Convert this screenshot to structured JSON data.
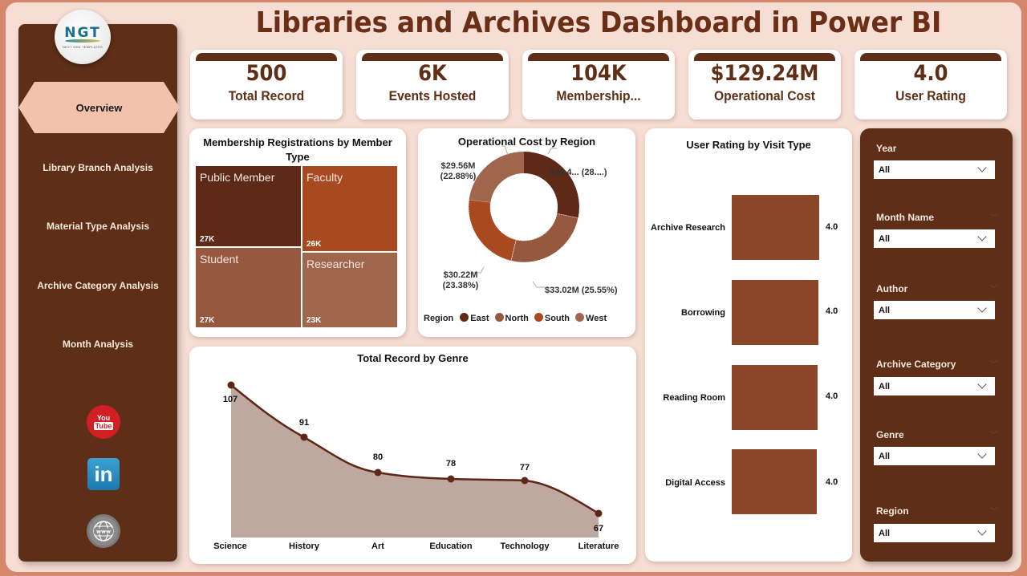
{
  "header": {
    "title": "Libraries and Archives Dashboard in Power BI"
  },
  "logo": {
    "text": "NGT",
    "subtitle": "NEXT GEN TEMPLATES"
  },
  "sidebar": {
    "items": [
      {
        "label": "Overview",
        "active": true
      },
      {
        "label": "Library Branch Analysis",
        "active": false
      },
      {
        "label": "Material Type Analysis",
        "active": false
      },
      {
        "label": "Archive Category Analysis",
        "active": false
      },
      {
        "label": "Month Analysis",
        "active": false
      }
    ],
    "social": [
      {
        "icon": "youtube-icon",
        "top_text": "You",
        "bottom_text": "Tube"
      },
      {
        "icon": "linkedin-icon",
        "text": "in"
      },
      {
        "icon": "website-globe-icon",
        "text": "www"
      }
    ]
  },
  "kpis": [
    {
      "value": "500",
      "label": "Total Record"
    },
    {
      "value": "6K",
      "label": "Events Hosted"
    },
    {
      "value": "104K",
      "label": "Membership..."
    },
    {
      "value": "$129.24M",
      "label": "Operational Cost"
    },
    {
      "value": "4.0",
      "label": "User Rating"
    }
  ],
  "filters": [
    {
      "label": "Year",
      "value": "All"
    },
    {
      "label": "Month Name",
      "value": "All"
    },
    {
      "label": "Author",
      "value": "All"
    },
    {
      "label": "Archive Category",
      "value": "All"
    },
    {
      "label": "Genre",
      "value": "All"
    },
    {
      "label": "Region",
      "value": "All"
    }
  ],
  "colors": {
    "dark_brown": "#5E2E17",
    "rust": "#A9491F",
    "mid_brown": "#965940",
    "light_brown": "#A0654D",
    "bar": "#8B4528",
    "area_fill": "#BFA89F",
    "line": "#5E2617",
    "panel_bg": "#F6DED4",
    "outer_bg": "#D4876A",
    "active_nav": "#F3C2AD"
  },
  "chart_data": [
    {
      "type": "treemap",
      "title": "Membership Registrations by Member Type",
      "categories": [
        "Public Member",
        "Faculty",
        "Student",
        "Researcher"
      ],
      "values": [
        27000,
        26000,
        27000,
        23000
      ],
      "labels": [
        "27K",
        "26K",
        "27K",
        "23K"
      ]
    },
    {
      "type": "pie",
      "subtype": "donut",
      "title": "Operational Cost by Region",
      "legend_title": "Region",
      "categories": [
        "East",
        "North",
        "South",
        "West"
      ],
      "values": [
        36.44,
        33.02,
        30.22,
        29.56
      ],
      "percentages": [
        28.19,
        25.55,
        23.38,
        22.88
      ],
      "data_labels": [
        "$36.4... (28....)",
        "$33.02M (25.55%)",
        "$30.22M (23.38%)",
        "$29.56M (22.88%)"
      ],
      "unit": "$M",
      "legend_position": "bottom"
    },
    {
      "type": "bar",
      "orientation": "horizontal",
      "title": "User Rating by Visit Type",
      "categories": [
        "Archive Research",
        "Borrowing",
        "Reading Room",
        "Digital Access"
      ],
      "values": [
        4.0,
        4.0,
        4.0,
        4.0
      ],
      "labels": [
        "4.0",
        "4.0",
        "4.0",
        "4.0"
      ]
    },
    {
      "type": "area",
      "title": "Total Record by Genre",
      "categories": [
        "Science",
        "History",
        "Art",
        "Education",
        "Technology",
        "Literature"
      ],
      "values": [
        107,
        91,
        80,
        78,
        77,
        67
      ],
      "xlabel": "",
      "ylabel": "",
      "grid": false
    }
  ]
}
